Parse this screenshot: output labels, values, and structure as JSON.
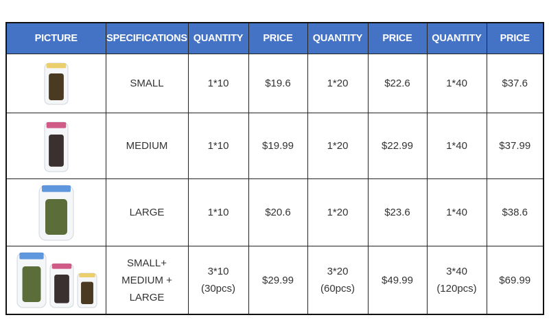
{
  "header": [
    "PICTURE",
    "SPECIFICATIONS",
    "QUANTITY",
    "PRICE",
    "QUANTITY",
    "PRICE",
    "QUANTITY",
    "PRICE"
  ],
  "colors": {
    "header_bg": "#4472c4",
    "small_lid": "#e8c54a",
    "medium_lid": "#c8346a",
    "large_lid": "#3a7fd8"
  },
  "rows": [
    {
      "picture": "small-jar-bag-image",
      "spec": [
        "SMALL"
      ],
      "q1": [
        "1*10"
      ],
      "p1": "$19.6",
      "q2": [
        "1*20"
      ],
      "p2": "$22.6",
      "q3": [
        "1*40"
      ],
      "p3": "$37.6"
    },
    {
      "picture": "medium-jar-bag-image",
      "spec": [
        "MEDIUM"
      ],
      "q1": [
        "1*10"
      ],
      "p1": "$19.99",
      "q2": [
        "1*20"
      ],
      "p2": "$22.99",
      "q3": [
        "1*40"
      ],
      "p3": "$37.99"
    },
    {
      "picture": "large-jar-bag-image",
      "spec": [
        "LARGE"
      ],
      "q1": [
        "1*10"
      ],
      "p1": "$20.6",
      "q2": [
        "1*20"
      ],
      "p2": "$23.6",
      "q3": [
        "1*40"
      ],
      "p3": "$38.6"
    },
    {
      "picture": "set-jar-bag-image",
      "spec": [
        "SMALL+",
        "MEDIUM +",
        "LARGE"
      ],
      "q1": [
        "3*10",
        "(30pcs)"
      ],
      "p1": "$29.99",
      "q2": [
        "3*20",
        "(60pcs)"
      ],
      "p2": "$49.99",
      "q3": [
        "3*40",
        "(120pcs)"
      ],
      "p3": "$69.99"
    }
  ]
}
